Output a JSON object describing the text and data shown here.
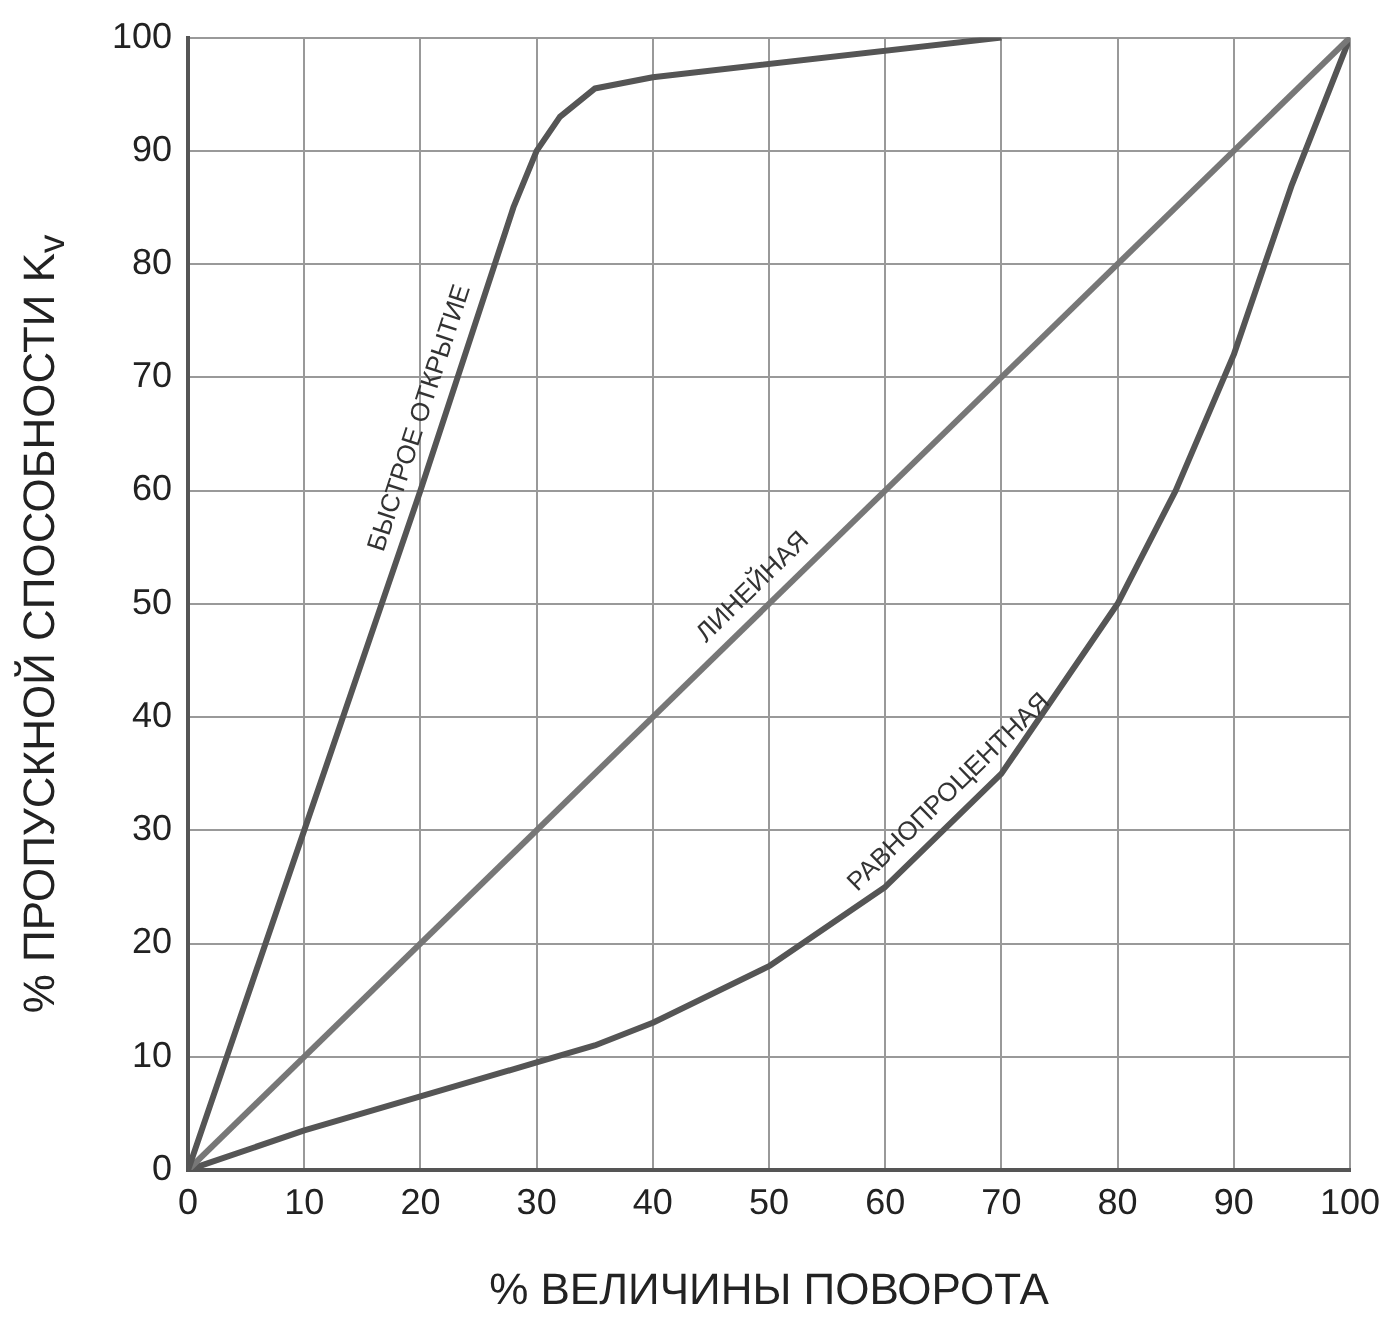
{
  "chart_data": {
    "type": "line",
    "xlabel": "% ВЕЛИЧИНЫ ПОВОРОТА",
    "ylabel": "% ПРОПУСКНОЙ СПОСОБНОСТИ K$_{v}$",
    "xlim": [
      0,
      100
    ],
    "ylim": [
      0,
      100
    ],
    "xticks": [
      0,
      10,
      20,
      30,
      40,
      50,
      60,
      70,
      80,
      90,
      100
    ],
    "yticks": [
      0,
      10,
      20,
      30,
      40,
      50,
      60,
      70,
      80,
      90,
      100
    ],
    "grid": true,
    "legend": false,
    "marker": "none",
    "line_style": "solid",
    "series": [
      {
        "name": "БЫСТРОЕ ОТКРЫТИЕ",
        "color": "#555555",
        "x": [
          0,
          10,
          20,
          28,
          30,
          32,
          35,
          40,
          70
        ],
        "values": [
          0,
          30,
          60,
          85,
          90,
          93,
          95.5,
          96.5,
          100
        ]
      },
      {
        "name": "ЛИНЕЙНАЯ",
        "color": "#777777",
        "x": [
          0,
          100
        ],
        "values": [
          0,
          100
        ]
      },
      {
        "name": "РАВНОПРОЦЕНТНАЯ",
        "color": "#555555",
        "x": [
          0,
          10,
          20,
          30,
          35,
          40,
          50,
          60,
          70,
          80,
          85,
          90,
          95,
          100
        ],
        "values": [
          0,
          3.5,
          6.5,
          9.5,
          11,
          13,
          18,
          25,
          35,
          50,
          60,
          72,
          87,
          100
        ]
      }
    ]
  }
}
